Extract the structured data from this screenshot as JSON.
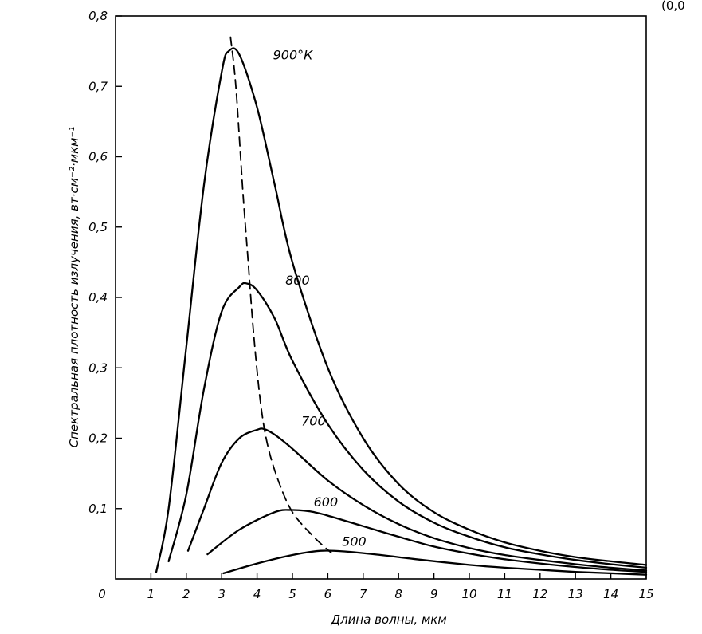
{
  "chart_data": {
    "type": "line",
    "xlabel": "Длина волны, мкм",
    "ylabel": "Спектральная плотность излучения, вт·см⁻²·мкм⁻¹",
    "xlim": [
      0,
      15
    ],
    "ylim": [
      0,
      0.8
    ],
    "x_ticks": [
      "0",
      "1",
      "2",
      "3",
      "4",
      "5",
      "6",
      "7",
      "8",
      "9",
      "10",
      "11",
      "12",
      "13",
      "14",
      "15"
    ],
    "y_ticks": [
      "0,1",
      "0,2",
      "0,3",
      "0,4",
      "0,5",
      "0,6",
      "0,7",
      "0,8"
    ],
    "grid": false,
    "corner_text": "(0,0",
    "series": [
      {
        "name": "900°К",
        "style": "solid",
        "points": [
          [
            1.15,
            0.01
          ],
          [
            1.5,
            0.1
          ],
          [
            2.0,
            0.33
          ],
          [
            2.5,
            0.56
          ],
          [
            3.0,
            0.72
          ],
          [
            3.2,
            0.75
          ],
          [
            3.5,
            0.745
          ],
          [
            4.0,
            0.67
          ],
          [
            4.5,
            0.56
          ],
          [
            5.0,
            0.45
          ],
          [
            6.0,
            0.3
          ],
          [
            7.0,
            0.2
          ],
          [
            8.0,
            0.135
          ],
          [
            9.0,
            0.095
          ],
          [
            10.0,
            0.07
          ],
          [
            11.0,
            0.052
          ],
          [
            12.0,
            0.04
          ],
          [
            13.0,
            0.031
          ],
          [
            14.0,
            0.025
          ],
          [
            15.0,
            0.02
          ]
        ]
      },
      {
        "name": "800",
        "style": "solid",
        "points": [
          [
            1.5,
            0.025
          ],
          [
            2.0,
            0.12
          ],
          [
            2.5,
            0.27
          ],
          [
            3.0,
            0.38
          ],
          [
            3.5,
            0.415
          ],
          [
            3.7,
            0.42
          ],
          [
            4.0,
            0.41
          ],
          [
            4.5,
            0.37
          ],
          [
            5.0,
            0.31
          ],
          [
            6.0,
            0.22
          ],
          [
            7.0,
            0.155
          ],
          [
            8.0,
            0.11
          ],
          [
            9.0,
            0.08
          ],
          [
            10.0,
            0.06
          ],
          [
            11.0,
            0.045
          ],
          [
            12.0,
            0.035
          ],
          [
            13.0,
            0.027
          ],
          [
            14.0,
            0.021
          ],
          [
            15.0,
            0.016
          ]
        ]
      },
      {
        "name": "700",
        "style": "solid",
        "points": [
          [
            2.05,
            0.04
          ],
          [
            2.5,
            0.1
          ],
          [
            3.0,
            0.165
          ],
          [
            3.5,
            0.2
          ],
          [
            4.0,
            0.212
          ],
          [
            4.2,
            0.213
          ],
          [
            4.5,
            0.205
          ],
          [
            5.0,
            0.185
          ],
          [
            6.0,
            0.14
          ],
          [
            7.0,
            0.105
          ],
          [
            8.0,
            0.078
          ],
          [
            9.0,
            0.058
          ],
          [
            10.0,
            0.044
          ],
          [
            11.0,
            0.034
          ],
          [
            12.0,
            0.027
          ],
          [
            13.0,
            0.021
          ],
          [
            14.0,
            0.016
          ],
          [
            15.0,
            0.012
          ]
        ]
      },
      {
        "name": "600",
        "style": "solid",
        "points": [
          [
            2.6,
            0.035
          ],
          [
            3.5,
            0.07
          ],
          [
            4.5,
            0.095
          ],
          [
            5.0,
            0.098
          ],
          [
            5.5,
            0.096
          ],
          [
            6.0,
            0.09
          ],
          [
            7.0,
            0.075
          ],
          [
            8.0,
            0.06
          ],
          [
            9.0,
            0.046
          ],
          [
            10.0,
            0.036
          ],
          [
            11.0,
            0.028
          ],
          [
            12.0,
            0.022
          ],
          [
            13.0,
            0.017
          ],
          [
            14.0,
            0.013
          ],
          [
            15.0,
            0.01
          ]
        ]
      },
      {
        "name": "500",
        "style": "solid",
        "points": [
          [
            3.05,
            0.008
          ],
          [
            4.0,
            0.022
          ],
          [
            5.0,
            0.034
          ],
          [
            5.8,
            0.04
          ],
          [
            6.5,
            0.039
          ],
          [
            7.5,
            0.034
          ],
          [
            8.5,
            0.028
          ],
          [
            10.0,
            0.02
          ],
          [
            11.0,
            0.016
          ],
          [
            12.0,
            0.013
          ],
          [
            13.0,
            0.01
          ],
          [
            14.0,
            0.008
          ],
          [
            15.0,
            0.006
          ]
        ]
      },
      {
        "name": "",
        "style": "dashed",
        "points": [
          [
            3.25,
            0.77
          ],
          [
            3.4,
            0.7
          ],
          [
            3.6,
            0.55
          ],
          [
            3.75,
            0.45
          ],
          [
            3.9,
            0.35
          ],
          [
            4.1,
            0.25
          ],
          [
            4.3,
            0.19
          ],
          [
            4.6,
            0.14
          ],
          [
            5.0,
            0.095
          ],
          [
            5.6,
            0.06
          ],
          [
            6.1,
            0.037
          ]
        ]
      }
    ],
    "annotations": [
      {
        "text": "900°К",
        "x": 4.45,
        "y": 0.745
      },
      {
        "text": "800",
        "x": 4.8,
        "y": 0.425
      },
      {
        "text": "700",
        "x": 5.25,
        "y": 0.225
      },
      {
        "text": "600",
        "x": 5.6,
        "y": 0.11
      },
      {
        "text": "500",
        "x": 6.4,
        "y": 0.054
      }
    ]
  }
}
